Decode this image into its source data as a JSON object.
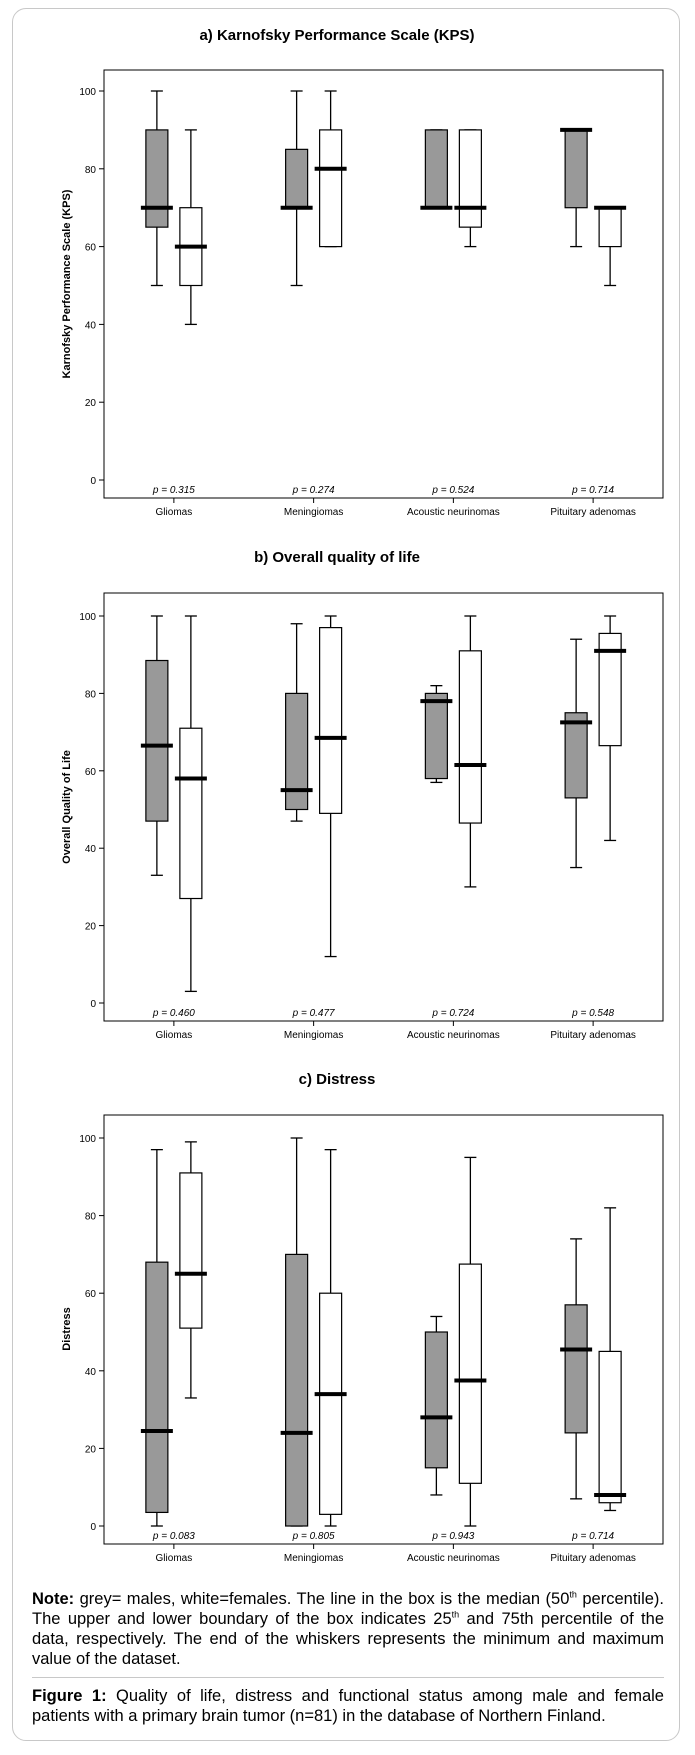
{
  "chart_data": [
    {
      "type": "boxplot",
      "title": "a) Karnofsky Performance Scale (KPS)",
      "ylabel": "Karnofsky Performance Scale (KPS)",
      "ylim": [
        0,
        100
      ],
      "yticks": [
        "0",
        "20",
        "40",
        "60",
        "80",
        "100"
      ],
      "categories": [
        "Gliomas",
        "Meningiomas",
        "Acoustic neurinomas",
        "Pituitary adenomas"
      ],
      "p_values": [
        "p = 0.315",
        "p = 0.274",
        "p = 0.524",
        "p = 0.714"
      ],
      "series": [
        {
          "name": "males",
          "color": "#999999",
          "boxes": [
            {
              "min": 50,
              "q1": 65,
              "median": 70,
              "q3": 90,
              "max": 100
            },
            {
              "min": 50,
              "q1": 70,
              "median": 70,
              "q3": 85,
              "max": 100
            },
            {
              "min": 70,
              "q1": 70,
              "median": 70,
              "q3": 90,
              "max": 90
            },
            {
              "min": 60,
              "q1": 70,
              "median": 90,
              "q3": 90,
              "max": 90
            }
          ]
        },
        {
          "name": "females",
          "color": "#ffffff",
          "boxes": [
            {
              "min": 40,
              "q1": 50,
              "median": 60,
              "q3": 70,
              "max": 90
            },
            {
              "min": 60,
              "q1": 60,
              "median": 80,
              "q3": 90,
              "max": 100
            },
            {
              "min": 60,
              "q1": 65,
              "median": 70,
              "q3": 90,
              "max": 90
            },
            {
              "min": 50,
              "q1": 60,
              "median": 70,
              "q3": 70,
              "max": 70
            }
          ]
        }
      ]
    },
    {
      "type": "boxplot",
      "title": "b) Overall quality of life",
      "ylabel": "Overall Quality of Life",
      "ylim": [
        0,
        100
      ],
      "yticks": [
        "0",
        "20",
        "40",
        "60",
        "80",
        "100"
      ],
      "categories": [
        "Gliomas",
        "Meningiomas",
        "Acoustic neurinomas",
        "Pituitary adenomas"
      ],
      "p_values": [
        "p = 0.460",
        "p = 0.477",
        "p = 0.724",
        "p = 0.548"
      ],
      "series": [
        {
          "name": "males",
          "color": "#999999",
          "boxes": [
            {
              "min": 33,
              "q1": 47,
              "median": 66.5,
              "q3": 88.5,
              "max": 100
            },
            {
              "min": 47,
              "q1": 50,
              "median": 55,
              "q3": 80,
              "max": 98
            },
            {
              "min": 57,
              "q1": 58,
              "median": 78,
              "q3": 80,
              "max": 82
            },
            {
              "min": 35,
              "q1": 53,
              "median": 72.5,
              "q3": 75,
              "max": 94
            }
          ]
        },
        {
          "name": "females",
          "color": "#ffffff",
          "boxes": [
            {
              "min": 3,
              "q1": 27,
              "median": 58,
              "q3": 71,
              "max": 100
            },
            {
              "min": 12,
              "q1": 49,
              "median": 68.5,
              "q3": 97,
              "max": 100
            },
            {
              "min": 30,
              "q1": 46.5,
              "median": 61.5,
              "q3": 91,
              "max": 100
            },
            {
              "min": 42,
              "q1": 66.5,
              "median": 91,
              "q3": 95.5,
              "max": 100
            }
          ]
        }
      ]
    },
    {
      "type": "boxplot",
      "title": "c) Distress",
      "ylabel": "Distress",
      "ylim": [
        0,
        100
      ],
      "yticks": [
        "0",
        "20",
        "40",
        "60",
        "80",
        "100"
      ],
      "categories": [
        "Gliomas",
        "Meningiomas",
        "Acoustic neurinomas",
        "Pituitary adenomas"
      ],
      "p_values": [
        "p = 0.083",
        "p = 0.805",
        "p = 0.943",
        "p = 0.714"
      ],
      "series": [
        {
          "name": "males",
          "color": "#999999",
          "boxes": [
            {
              "min": 0,
              "q1": 3.5,
              "median": 24.5,
              "q3": 68,
              "max": 97
            },
            {
              "min": 0,
              "q1": 0,
              "median": 24,
              "q3": 70,
              "max": 100
            },
            {
              "min": 8,
              "q1": 15,
              "median": 28,
              "q3": 50,
              "max": 54
            },
            {
              "min": 7,
              "q1": 24,
              "median": 45.5,
              "q3": 57,
              "max": 74
            }
          ]
        },
        {
          "name": "females",
          "color": "#ffffff",
          "boxes": [
            {
              "min": 33,
              "q1": 51,
              "median": 65,
              "q3": 91,
              "max": 99
            },
            {
              "min": 0,
              "q1": 3,
              "median": 34,
              "q3": 60,
              "max": 97
            },
            {
              "min": 0,
              "q1": 11,
              "median": 37.5,
              "q3": 67.5,
              "max": 95
            },
            {
              "min": 4,
              "q1": 6,
              "median": 8,
              "q3": 45,
              "max": 82
            }
          ]
        }
      ]
    }
  ],
  "note": {
    "label": "Note:",
    "text_1": " grey= males, white=females. The line in the box is the median (50",
    "sup_1": "th",
    "text_2": " percentile). The upper and lower boundary of the box indicates 25",
    "sup_2": "th",
    "text_3": " and 75th percentile of the data, respectively. The end of the whiskers represents the minimum and maximum value of the dataset."
  },
  "figure_caption": {
    "label": "Figure 1:",
    "text": " Quality of life, distress and functional status among male and female patients with a primary brain tumor (n=81) in the database of Northern Finland."
  }
}
